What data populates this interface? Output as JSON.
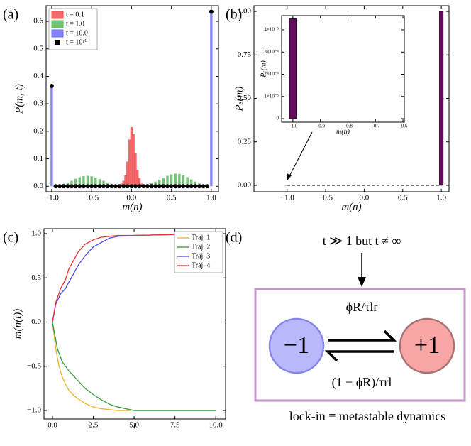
{
  "chart_data": [
    {
      "type": "bar",
      "label": "(a)",
      "xlabel": "m(n)",
      "ylabel": "P(m, t)",
      "xlim": [
        -1.07,
        1.09
      ],
      "ylim": [
        -0.02,
        0.657
      ],
      "xticks": [
        {
          "value": -1,
          "label": "−1.0"
        },
        {
          "value": -0.5,
          "label": "−0.5"
        },
        {
          "value": 0,
          "label": "0.0"
        },
        {
          "value": 0.5,
          "label": "0.5"
        },
        {
          "value": 1,
          "label": "1.0"
        }
      ],
      "yticks": [
        {
          "value": 0,
          "label": "0.0"
        },
        {
          "value": 0.1,
          "label": "0.1"
        },
        {
          "value": 0.2,
          "label": "0.2"
        },
        {
          "value": 0.3,
          "label": "0.3"
        },
        {
          "value": 0.4,
          "label": "0.4"
        },
        {
          "value": 0.5,
          "label": "0.5"
        },
        {
          "value": 0.6,
          "label": "0.6"
        }
      ],
      "legend": "upper left",
      "series": [
        {
          "name": "t = 0.1",
          "color": "#f05050",
          "x": [
            -0.15,
            -0.125,
            -0.1,
            -0.075,
            -0.05,
            -0.025,
            0,
            0.025,
            0.05,
            0.075,
            0.1,
            0.125,
            0.15
          ],
          "values": [
            0.005,
            0.01,
            0.02,
            0.04,
            0.09,
            0.17,
            0.215,
            0.19,
            0.12,
            0.06,
            0.03,
            0.01,
            0.005
          ]
        },
        {
          "name": "t = 1.0",
          "color": "#5cb85c",
          "x": [
            -0.95,
            -0.9,
            -0.85,
            -0.8,
            -0.75,
            -0.7,
            -0.65,
            -0.6,
            -0.55,
            -0.5,
            -0.45,
            -0.4,
            -0.35,
            -0.3,
            -0.25,
            -0.2,
            -0.15,
            -0.1,
            -0.05,
            0,
            0.05,
            0.1,
            0.15,
            0.2,
            0.25,
            0.3,
            0.35,
            0.4,
            0.45,
            0.5,
            0.55,
            0.6,
            0.65,
            0.7,
            0.75,
            0.8,
            0.85,
            0.9,
            0.95
          ],
          "values": [
            0.002,
            0.005,
            0.009,
            0.014,
            0.02,
            0.027,
            0.033,
            0.037,
            0.038,
            0.036,
            0.032,
            0.026,
            0.02,
            0.014,
            0.009,
            0.006,
            0.004,
            0.003,
            0.002,
            0.002,
            0.002,
            0.003,
            0.005,
            0.008,
            0.012,
            0.017,
            0.024,
            0.031,
            0.038,
            0.043,
            0.046,
            0.045,
            0.04,
            0.033,
            0.025,
            0.017,
            0.01,
            0.006,
            0.003
          ]
        },
        {
          "name": "t = 10.0",
          "color": "#6f6ff5",
          "x": [
            -1,
            1
          ],
          "values": [
            0.365,
            0.635
          ]
        },
        {
          "name": "t = 10¹⁰",
          "color": "#000000",
          "marker": "dot",
          "x": [
            -1,
            -0.95,
            -0.9,
            -0.85,
            -0.8,
            -0.75,
            -0.7,
            -0.65,
            -0.6,
            -0.55,
            -0.5,
            -0.45,
            -0.4,
            -0.35,
            -0.3,
            -0.25,
            -0.2,
            -0.15,
            -0.1,
            -0.05,
            0,
            0.05,
            0.1,
            0.15,
            0.2,
            0.25,
            0.3,
            0.35,
            0.4,
            0.45,
            0.5,
            0.55,
            0.6,
            0.65,
            0.7,
            0.75,
            0.8,
            0.85,
            0.9,
            0.95,
            1
          ],
          "values": [
            0.365,
            0,
            0,
            0,
            0,
            0,
            0,
            0,
            0,
            0,
            0,
            0,
            0,
            0,
            0,
            0,
            0,
            0,
            0,
            0,
            0,
            0,
            0,
            0,
            0,
            0,
            0,
            0,
            0,
            0,
            0,
            0,
            0,
            0,
            0,
            0,
            0,
            0,
            0,
            0,
            0.635
          ]
        }
      ]
    },
    {
      "type": "bar",
      "label": "(b)",
      "xlabel": "m(n)",
      "ylabel": "Pₛ(m)",
      "xlim": [
        -1.43,
        1.1
      ],
      "ylim": [
        -0.037,
        1.033
      ],
      "xticks": [
        {
          "value": -1,
          "label": "−1.0"
        },
        {
          "value": -0.5,
          "label": "−0.5"
        },
        {
          "value": 0,
          "label": "0.0"
        },
        {
          "value": 0.5,
          "label": "0.5"
        },
        {
          "value": 1,
          "label": "1.0"
        }
      ],
      "yticks": [
        {
          "value": 0,
          "label": "0.00"
        },
        {
          "value": 0.25,
          "label": "0.25"
        },
        {
          "value": 0.5,
          "label": "0.50"
        },
        {
          "value": 0.75,
          "label": "0.75"
        },
        {
          "value": 1,
          "label": "1.00"
        }
      ],
      "series": [
        {
          "color": "#6a0a5e",
          "x": [
            -1,
            1
          ],
          "values": [
            4.5e-05,
            1.0
          ]
        }
      ]
    },
    {
      "type": "bar",
      "xlabel": "m(n)",
      "ylabel": "Pₛ(m)",
      "xlim": [
        -1.041,
        -0.595
      ],
      "ylim": [
        -1.6e-06,
        4.64e-05
      ],
      "xticks": [
        {
          "value": -1,
          "label": "−1.0"
        },
        {
          "value": -0.9,
          "label": "−0.9"
        },
        {
          "value": -0.8,
          "label": "−0.8"
        },
        {
          "value": -0.7,
          "label": "−0.7"
        },
        {
          "value": -0.6,
          "label": "−0.6"
        }
      ],
      "yticks": [
        0,
        {
          "value": 1e-05,
          "label": "1×10⁻⁵"
        },
        {
          "value": 2e-05,
          "label": "2×10⁻⁵"
        },
        {
          "value": 3e-05,
          "label": "3×10⁻⁵"
        },
        {
          "value": 4e-05,
          "label": "4×10⁻⁵"
        }
      ],
      "series": [
        {
          "color": "#6a0a5e",
          "x": [
            -1
          ],
          "values": [
            4.5e-05
          ]
        }
      ]
    },
    {
      "type": "line",
      "label": "(c)",
      "xlabel": "t",
      "ylabel": "m(n(t))",
      "xlim": [
        -0.52,
        10.6
      ],
      "ylim": [
        -1.096,
        1.056
      ],
      "xticks": [
        {
          "value": 0,
          "label": "0.0"
        },
        {
          "value": 2.5,
          "label": "2.5"
        },
        {
          "value": 5,
          "label": "5.0"
        },
        {
          "value": 7.5,
          "label": "7.5"
        },
        {
          "value": 10,
          "label": "10.0"
        }
      ],
      "yticks": [
        {
          "value": -1,
          "label": "−1.0"
        },
        {
          "value": -0.5,
          "label": "−0.5"
        },
        {
          "value": 0,
          "label": "0.0"
        },
        {
          "value": 0.5,
          "label": "0.5"
        },
        {
          "value": 1,
          "label": "1.0"
        }
      ],
      "legend": "upper right",
      "series": [
        {
          "name": "Traj. 1",
          "color": "#f0b030",
          "x": [
            0,
            0.2,
            0.4,
            0.6,
            0.8,
            1.0,
            1.3,
            1.6,
            2.0,
            2.5,
            3.0,
            3.5,
            4.0,
            4.8
          ],
          "values": [
            0,
            -0.3,
            -0.5,
            -0.62,
            -0.7,
            -0.77,
            -0.83,
            -0.87,
            -0.92,
            -0.96,
            -0.98,
            -0.99,
            -1,
            -1
          ]
        },
        {
          "name": "Traj. 2",
          "color": "#3a9a3a",
          "x": [
            0,
            0.3,
            0.6,
            1.0,
            1.5,
            2.0,
            2.5,
            3.0,
            3.5,
            4.0,
            4.5,
            5.0,
            10.0
          ],
          "values": [
            0,
            -0.3,
            -0.45,
            -0.55,
            -0.65,
            -0.75,
            -0.82,
            -0.88,
            -0.93,
            -0.96,
            -0.98,
            -1,
            -1
          ]
        },
        {
          "name": "Traj. 3",
          "color": "#4a4af0",
          "x": [
            0,
            0.2,
            0.5,
            0.8,
            1.0,
            1.3,
            1.6,
            2.0,
            2.5,
            3.0,
            3.5,
            4.0,
            5.0,
            7.5,
            10.0
          ],
          "values": [
            0,
            0.2,
            0.32,
            0.38,
            0.45,
            0.55,
            0.65,
            0.75,
            0.85,
            0.9,
            0.95,
            0.97,
            0.98,
            0.99,
            1
          ]
        },
        {
          "name": "Traj. 4",
          "color": "#e83030",
          "x": [
            0,
            0.2,
            0.5,
            0.8,
            1.0,
            1.3,
            1.6,
            2.0,
            2.5,
            3.0,
            3.5,
            4.0,
            5.0,
            7.5,
            10.0
          ],
          "values": [
            0,
            0.22,
            0.38,
            0.48,
            0.6,
            0.7,
            0.8,
            0.88,
            0.93,
            0.96,
            0.97,
            0.98,
            0.98,
            0.99,
            1
          ]
        }
      ]
    }
  ],
  "diagram": {
    "label": "(d)",
    "condition": "t ≫ 1 but t ≠ ∞",
    "forward_rate": "ϕR/τlr",
    "backward_rate": "(1 − ϕR)/τrl",
    "left_state": "−1",
    "right_state": "+1",
    "caption": "lock-in ≡ metastable dynamics"
  }
}
